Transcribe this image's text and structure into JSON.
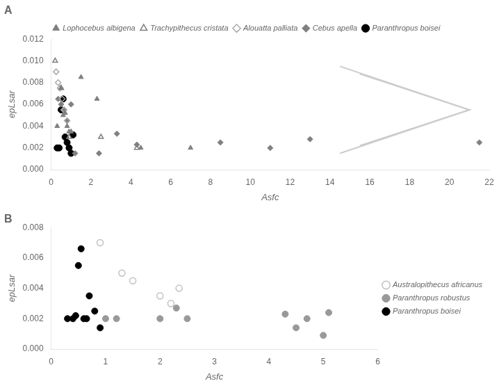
{
  "chart_data": [
    {
      "type": "scatter",
      "title": "A",
      "xlabel": "Asfc",
      "ylabel": "epLsar",
      "xlim": [
        0,
        22
      ],
      "ylim": [
        0,
        0.012
      ],
      "xticks": [
        0,
        2,
        4,
        6,
        8,
        10,
        12,
        14,
        16,
        18,
        20,
        22
      ],
      "yticks": [
        {
          "value": 0,
          "label": "0.000"
        },
        0.002,
        0.004,
        0.006,
        0.008,
        {
          "value": 0.01,
          "label": "0.010"
        },
        0.012
      ],
      "grid": false,
      "legend": "top",
      "series": [
        {
          "name": "Lophocebus albigena",
          "color": "#808080",
          "marker": "triangle",
          "x": [
            0.3,
            0.5,
            0.6,
            0.7,
            0.8,
            0.9,
            1.0,
            1.5,
            2.3,
            4.5,
            7.0
          ],
          "values": [
            0.004,
            0.0075,
            0.005,
            0.0052,
            0.004,
            0.0035,
            0.0035,
            0.0085,
            0.0065,
            0.002,
            0.002
          ]
        },
        {
          "name": "Trachypithecus cristata",
          "color": "#808080",
          "marker": "triangle-open",
          "x": [
            0.2,
            0.5,
            0.9,
            2.5,
            4.3
          ],
          "values": [
            0.01,
            0.0075,
            0.003,
            0.003,
            0.002
          ]
        },
        {
          "name": "Alouatta palliata",
          "color": "#aaaaaa",
          "marker": "diamond-open",
          "x": [
            0.25,
            0.35,
            0.45,
            0.55,
            0.65,
            0.8
          ],
          "values": [
            0.009,
            0.008,
            0.0075,
            0.0065,
            0.0055,
            0.0045
          ]
        },
        {
          "name": "Cebus apella",
          "color": "#808080",
          "marker": "diamond",
          "x": [
            0.35,
            0.5,
            0.6,
            0.8,
            1.0,
            1.2,
            2.4,
            3.3,
            4.3,
            8.5,
            11.0,
            13.0,
            21.5
          ],
          "values": [
            0.0065,
            0.006,
            0.0055,
            0.0045,
            0.006,
            0.0015,
            0.0015,
            0.0033,
            0.0023,
            0.0025,
            0.002,
            0.0028,
            0.0025
          ]
        },
        {
          "name": "Paranthropus boisei",
          "color": "#000000",
          "marker": "circle",
          "x": [
            0.3,
            0.4,
            0.5,
            0.6,
            0.7,
            0.8,
            0.9,
            1.0,
            1.1
          ],
          "values": [
            0.002,
            0.002,
            0.0055,
            0.0065,
            0.003,
            0.0025,
            0.002,
            0.0015,
            0.0032
          ]
        },
        {
          "type": "line",
          "color": "#cccccc",
          "x": [
            14.5,
            21.0,
            14.5
          ],
          "values": [
            0.0095,
            0.0055,
            0.0015
          ]
        },
        {
          "type": "line",
          "color": "#cccccc",
          "x": [
            15.5,
            21.0,
            15.5
          ],
          "values": [
            0.0088,
            0.0055,
            0.0022
          ]
        }
      ]
    },
    {
      "type": "scatter",
      "title": "B",
      "xlabel": "Asfc",
      "ylabel": "epLsar",
      "xlim": [
        0,
        6
      ],
      "ylim": [
        0,
        0.008
      ],
      "xticks": [
        0,
        1,
        2,
        3,
        4,
        5,
        6
      ],
      "yticks": [
        {
          "value": 0,
          "label": "0.000"
        },
        0.002,
        0.004,
        0.006,
        0.008
      ],
      "grid": false,
      "legend": "right",
      "series": [
        {
          "name": "Australopithecus africanus",
          "color": "#c0c0c0",
          "marker": "circle-open",
          "x": [
            0.9,
            1.3,
            1.5,
            2.0,
            2.2,
            2.35
          ],
          "values": [
            0.007,
            0.005,
            0.0045,
            0.0035,
            0.003,
            0.004
          ]
        },
        {
          "name": "Paranthropus robustus",
          "color": "#999999",
          "marker": "circle",
          "x": [
            1.0,
            1.2,
            2.0,
            2.3,
            2.5,
            4.3,
            4.5,
            4.7,
            5.0,
            5.1
          ],
          "values": [
            0.002,
            0.002,
            0.002,
            0.0027,
            0.002,
            0.0023,
            0.0014,
            0.002,
            0.0009,
            0.0024
          ]
        },
        {
          "name": "Paranthropus boisei",
          "color": "#000000",
          "marker": "circle",
          "x": [
            0.3,
            0.4,
            0.45,
            0.5,
            0.55,
            0.6,
            0.65,
            0.7,
            0.8,
            0.9
          ],
          "values": [
            0.002,
            0.002,
            0.0022,
            0.0055,
            0.0066,
            0.002,
            0.002,
            0.0035,
            0.0025,
            0.0014
          ]
        }
      ]
    }
  ]
}
